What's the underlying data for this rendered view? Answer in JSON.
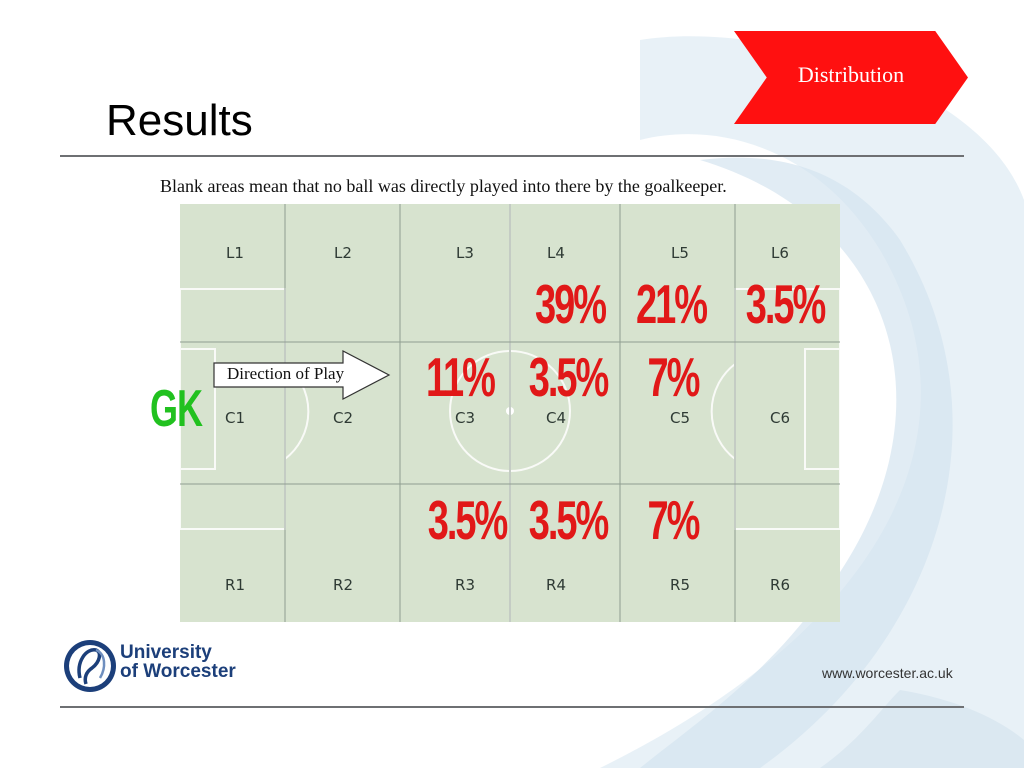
{
  "slide": {
    "title": "Results",
    "nav_button_label": "Distribution",
    "caption": "Blank areas mean that no ball was directly played into there by the goalkeeper.",
    "direction_label": "Direction of Play",
    "gk_label": "GK",
    "footer": {
      "university_line1": "University",
      "university_line2": "of Worcester",
      "website": "www.worcester.ac.uk"
    }
  },
  "pitch": {
    "zone_labels": {
      "L": [
        "L1",
        "L2",
        "L3",
        "L4",
        "L5",
        "L6"
      ],
      "C": [
        "C1",
        "C2",
        "C3",
        "C4",
        "C5",
        "C6"
      ],
      "R": [
        "R1",
        "R2",
        "R3",
        "R4",
        "R5",
        "R6"
      ]
    },
    "percentages": {
      "L4": "39%",
      "L5": "21%",
      "L6": "3.5%",
      "C3": "11%",
      "C4": "3.5%",
      "C5": "7%",
      "R3": "3.5%",
      "R4": "3.5%",
      "R5": "7%"
    }
  },
  "colors": {
    "accent_red": "#ff1010",
    "percentage_red": "#e11818",
    "gk_green": "#21c11f",
    "pitch_green": "#d7e3cf",
    "university_blue": "#1c3f7a"
  },
  "icons": {
    "direction_arrow": "arrow-right-icon",
    "logo": "university-logo-icon"
  }
}
